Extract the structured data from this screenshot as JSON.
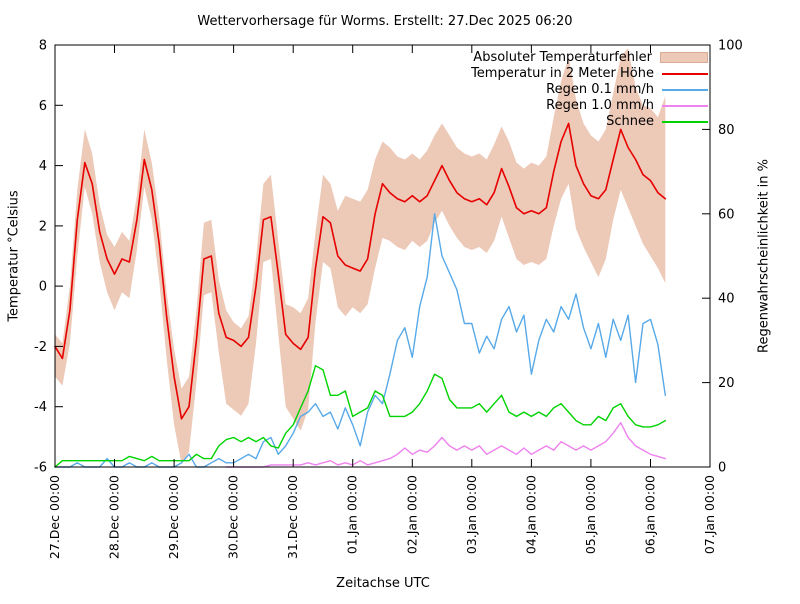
{
  "title": "Wettervorhersage für Worms. Erstellt: 27.Dec 2025 06:20",
  "chart_data": {
    "type": "line",
    "title": "Wettervorhersage für Worms. Erstellt: 27.Dec 2025 06:20",
    "xlabel": "Zeitachse UTC",
    "ylabel_left": "Temperatur °Celsius",
    "ylabel_right": "Regenwahrscheinlichkeit in %",
    "grid": false,
    "legend_position": "top-right-inside",
    "x_tick_labels": [
      "27.Dec 00:00",
      "28.Dec 00:00",
      "29.Dec 00:00",
      "30.Dec 00:00",
      "31.Dec 00:00",
      "01.Jan 00:00",
      "02.Jan 00:00",
      "03.Jan 00:00",
      "04.Jan 00:00",
      "05.Jan 00:00",
      "06.Jan 00:00",
      "07.Jan 00:00"
    ],
    "x_total_hours": 264,
    "x_tick_step_hours": 24,
    "time_step_hours": 3,
    "ylim_left": [
      -6,
      8
    ],
    "yticks_left": [
      -6,
      -4,
      -2,
      0,
      2,
      4,
      6,
      8
    ],
    "ylim_right": [
      0,
      100
    ],
    "yticks_right": [
      0,
      20,
      40,
      60,
      80,
      100
    ],
    "axis_color": "#000000",
    "series": [
      {
        "name": "Absoluter Temperaturfehler",
        "type": "band",
        "axis": "left",
        "color": "#edc9b8",
        "border_color": "#d9ab92",
        "upper": [
          -1.6,
          -1.9,
          0.0,
          3.2,
          5.2,
          4.4,
          2.7,
          1.7,
          1.3,
          1.8,
          1.5,
          3.0,
          5.2,
          4.1,
          2.3,
          -0.2,
          -2.1,
          -3.4,
          -3.0,
          -0.8,
          2.1,
          2.2,
          0.2,
          -0.8,
          -1.2,
          -1.4,
          -1.0,
          0.9,
          3.4,
          3.7,
          1.5,
          -0.6,
          -0.7,
          -0.9,
          -0.4,
          1.8,
          3.7,
          3.4,
          2.5,
          3.0,
          2.9,
          2.8,
          3.2,
          4.2,
          4.8,
          4.6,
          4.3,
          4.2,
          4.4,
          4.2,
          4.5,
          5.0,
          5.4,
          5.0,
          4.6,
          4.4,
          4.3,
          4.4,
          4.2,
          4.7,
          5.3,
          4.8,
          4.1,
          3.9,
          4.1,
          4.0,
          4.3,
          5.6,
          6.8,
          7.6,
          6.2,
          5.4,
          5.0,
          4.8,
          5.2,
          6.4,
          7.6,
          7.9,
          6.6,
          6.0,
          5.9,
          5.6,
          6.3
        ],
        "lower": [
          -3.0,
          -3.3,
          -1.9,
          1.0,
          3.3,
          2.4,
          0.8,
          -0.2,
          -0.8,
          -0.2,
          -0.4,
          1.2,
          3.3,
          2.2,
          0.2,
          -2.4,
          -4.6,
          -5.9,
          -5.5,
          -3.2,
          -0.3,
          -0.2,
          -2.2,
          -3.9,
          -4.1,
          -4.3,
          -3.9,
          -1.9,
          0.8,
          0.9,
          -1.6,
          -4.0,
          -4.4,
          -4.8,
          -4.1,
          -1.2,
          0.8,
          0.6,
          -0.7,
          -1.0,
          -0.7,
          -0.9,
          -0.6,
          0.6,
          1.6,
          1.5,
          1.3,
          1.2,
          1.5,
          1.3,
          1.5,
          2.1,
          2.5,
          2.0,
          1.6,
          1.3,
          1.2,
          1.3,
          1.1,
          1.5,
          2.3,
          1.6,
          0.9,
          0.7,
          0.8,
          0.7,
          0.9,
          2.0,
          2.9,
          3.4,
          1.9,
          1.3,
          0.8,
          0.3,
          0.9,
          2.2,
          3.2,
          2.6,
          2.0,
          1.4,
          1.0,
          0.6,
          0.1
        ]
      },
      {
        "name": "Temperatur in 2 Meter Höhe",
        "type": "line",
        "axis": "left",
        "color": "#e60000",
        "values": [
          -2.0,
          -2.4,
          -0.8,
          2.2,
          4.1,
          3.4,
          1.8,
          0.9,
          0.4,
          0.9,
          0.8,
          2.2,
          4.2,
          3.2,
          1.4,
          -1.0,
          -3.0,
          -4.4,
          -4.0,
          -1.8,
          0.9,
          1.0,
          -0.9,
          -1.7,
          -1.8,
          -2.0,
          -1.7,
          0.0,
          2.2,
          2.3,
          0.4,
          -1.6,
          -1.9,
          -2.1,
          -1.7,
          0.6,
          2.3,
          2.1,
          1.0,
          0.7,
          0.6,
          0.5,
          0.9,
          2.4,
          3.4,
          3.1,
          2.9,
          2.8,
          3.0,
          2.8,
          3.0,
          3.5,
          4.0,
          3.5,
          3.1,
          2.9,
          2.8,
          2.9,
          2.7,
          3.1,
          3.9,
          3.3,
          2.6,
          2.4,
          2.5,
          2.4,
          2.6,
          3.8,
          4.8,
          5.4,
          4.0,
          3.4,
          3.0,
          2.9,
          3.2,
          4.2,
          5.2,
          4.6,
          4.2,
          3.7,
          3.5,
          3.1,
          2.9
        ]
      },
      {
        "name": "Regen 0.1 mm/h",
        "type": "line",
        "axis": "right",
        "color": "#58a9e8",
        "values": [
          0,
          0,
          0,
          1,
          0,
          0,
          0,
          2,
          0,
          0,
          1,
          0,
          0,
          1,
          0,
          0,
          0,
          1,
          3,
          0,
          0,
          1,
          2,
          1,
          1,
          2,
          3,
          2,
          6,
          7,
          3,
          5,
          8,
          12,
          13,
          15,
          12,
          13,
          9,
          14,
          10,
          5,
          13,
          17,
          15,
          22,
          30,
          33,
          26,
          38,
          45,
          60,
          50,
          46,
          42,
          34,
          34,
          27,
          31,
          28,
          35,
          38,
          32,
          36,
          22,
          30,
          35,
          32,
          38,
          35,
          41,
          33,
          28,
          34,
          26,
          35,
          30,
          36,
          20,
          34,
          35,
          29,
          17
        ]
      },
      {
        "name": "Regen 1.0 mm/h",
        "type": "line",
        "axis": "right",
        "color": "#ee82ee",
        "values": [
          null,
          null,
          null,
          null,
          null,
          null,
          null,
          null,
          null,
          null,
          null,
          null,
          null,
          null,
          null,
          null,
          null,
          null,
          null,
          null,
          null,
          null,
          null,
          0,
          0,
          0,
          0,
          0,
          0,
          0.5,
          0.5,
          0.5,
          0.5,
          0.5,
          1,
          0.5,
          1,
          1.5,
          0.5,
          1,
          0.5,
          1.5,
          0.5,
          1,
          1.5,
          2,
          3,
          4.5,
          3,
          4,
          3.5,
          5,
          7,
          5,
          4,
          5,
          4,
          5,
          3,
          4,
          5,
          4,
          3,
          4.5,
          3,
          4,
          5,
          4,
          6,
          5,
          4,
          5,
          4,
          5,
          6,
          8,
          10.5,
          7,
          5,
          4,
          3,
          2.5,
          2
        ]
      },
      {
        "name": "Schnee",
        "type": "line",
        "axis": "right",
        "color": "#00d300",
        "values": [
          0,
          1.5,
          1.5,
          1.5,
          1.5,
          1.5,
          1.5,
          1.5,
          1.5,
          1.5,
          2.5,
          2,
          1.5,
          2.5,
          1.5,
          1.5,
          1.5,
          1.5,
          1.5,
          3,
          2,
          2,
          5,
          6.5,
          7,
          6,
          7,
          6,
          7,
          5,
          4.5,
          8,
          10,
          14,
          18,
          24,
          23,
          17,
          17,
          18,
          12,
          13,
          14,
          18,
          17,
          12,
          12,
          12,
          13,
          15,
          18,
          22,
          21,
          16,
          14,
          14,
          14,
          15,
          13,
          15,
          17,
          13,
          12,
          13,
          12,
          13,
          12,
          14,
          15,
          13,
          11,
          10,
          10,
          12,
          11,
          14,
          15,
          12,
          10,
          9.5,
          9.5,
          10,
          11
        ]
      }
    ]
  }
}
